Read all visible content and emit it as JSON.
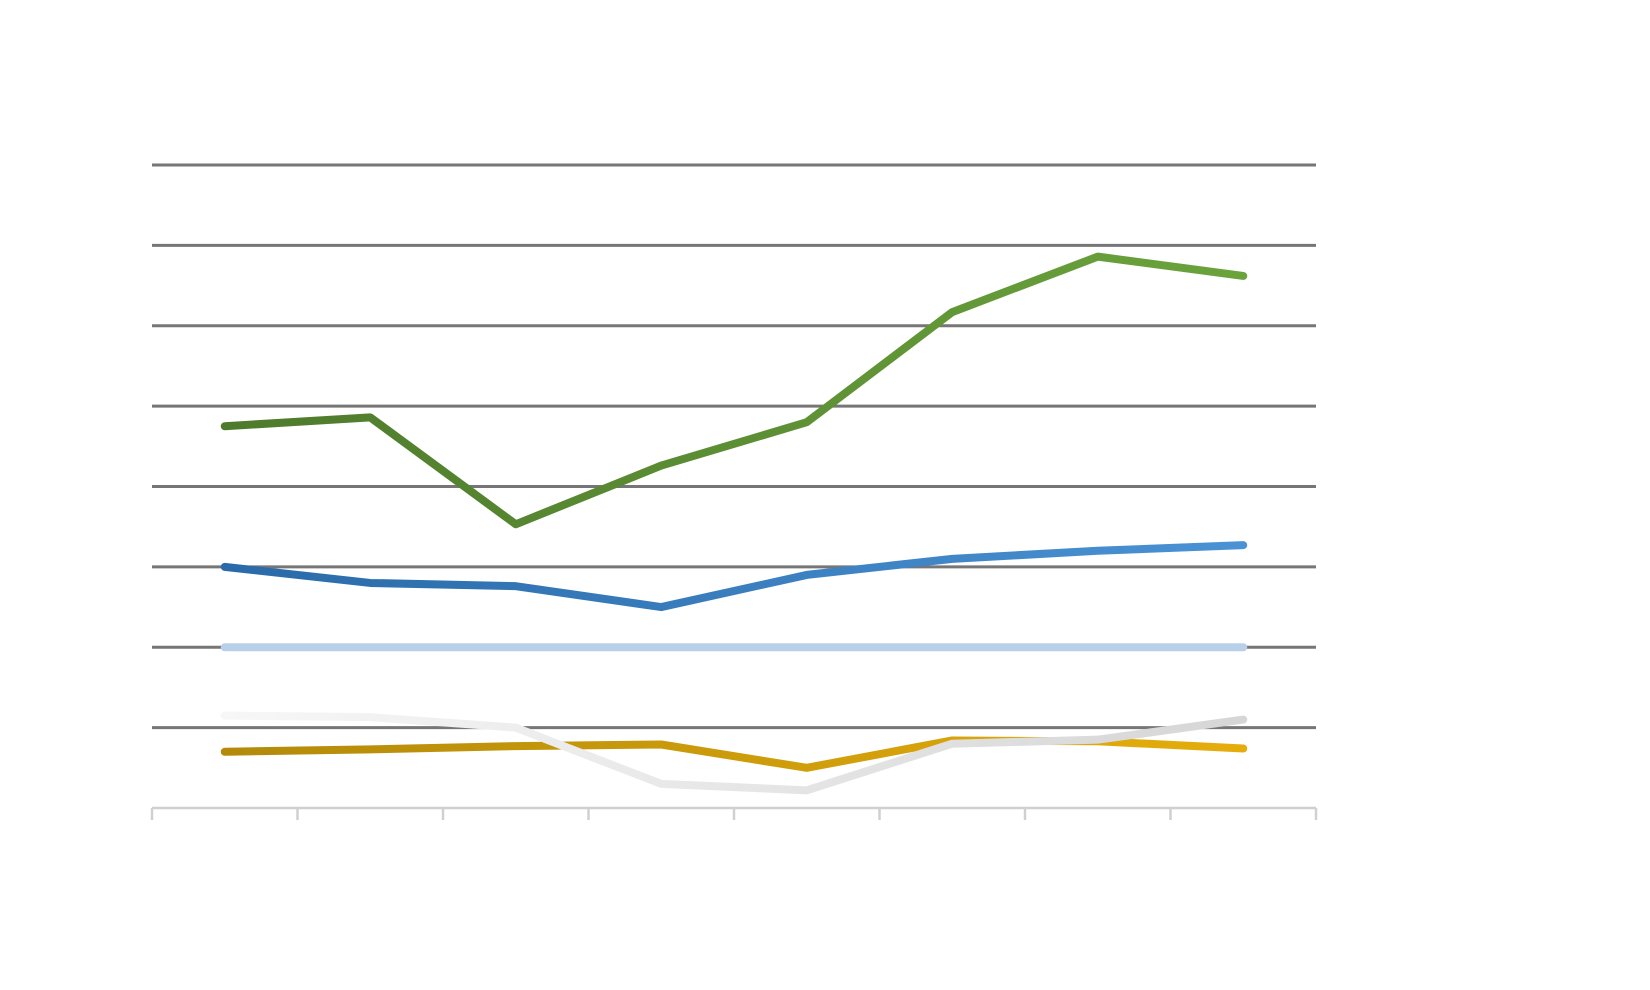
{
  "chart_data": {
    "type": "line",
    "x": [
      1,
      2,
      3,
      4,
      5,
      6,
      7,
      8
    ],
    "xlim": [
      0.5,
      8.5
    ],
    "ylim": [
      0,
      8
    ],
    "grid": true,
    "legend_position": "right",
    "series": [
      {
        "color_start": "#4e7a2c",
        "color_end": "#6aa33c",
        "values": [
          4.75,
          4.86,
          3.53,
          4.26,
          4.8,
          6.17,
          6.86,
          6.62
        ]
      },
      {
        "color_start": "#2a6aa8",
        "color_end": "#4a92d4",
        "values": [
          3.0,
          2.8,
          2.76,
          2.5,
          2.9,
          3.1,
          3.2,
          3.27
        ]
      },
      {
        "color_start": "#b8d0e8",
        "color_end": "#dce9f6",
        "values": [
          2.0,
          2.0,
          2.0,
          2.0,
          2.0,
          2.0,
          2.0,
          2.0
        ]
      },
      {
        "color_start": "#f7f7f7",
        "color_end": "#d6d6d6",
        "values": [
          1.15,
          1.13,
          1.0,
          0.3,
          0.22,
          0.8,
          0.85,
          1.1
        ]
      },
      {
        "color_start": "#b38a0a",
        "color_end": "#e5ad0c",
        "values": [
          0.7,
          0.73,
          0.77,
          0.79,
          0.5,
          0.84,
          0.83,
          0.74
        ]
      }
    ],
    "grid_color": "#767676",
    "axis_color": "#d0d0d0"
  }
}
